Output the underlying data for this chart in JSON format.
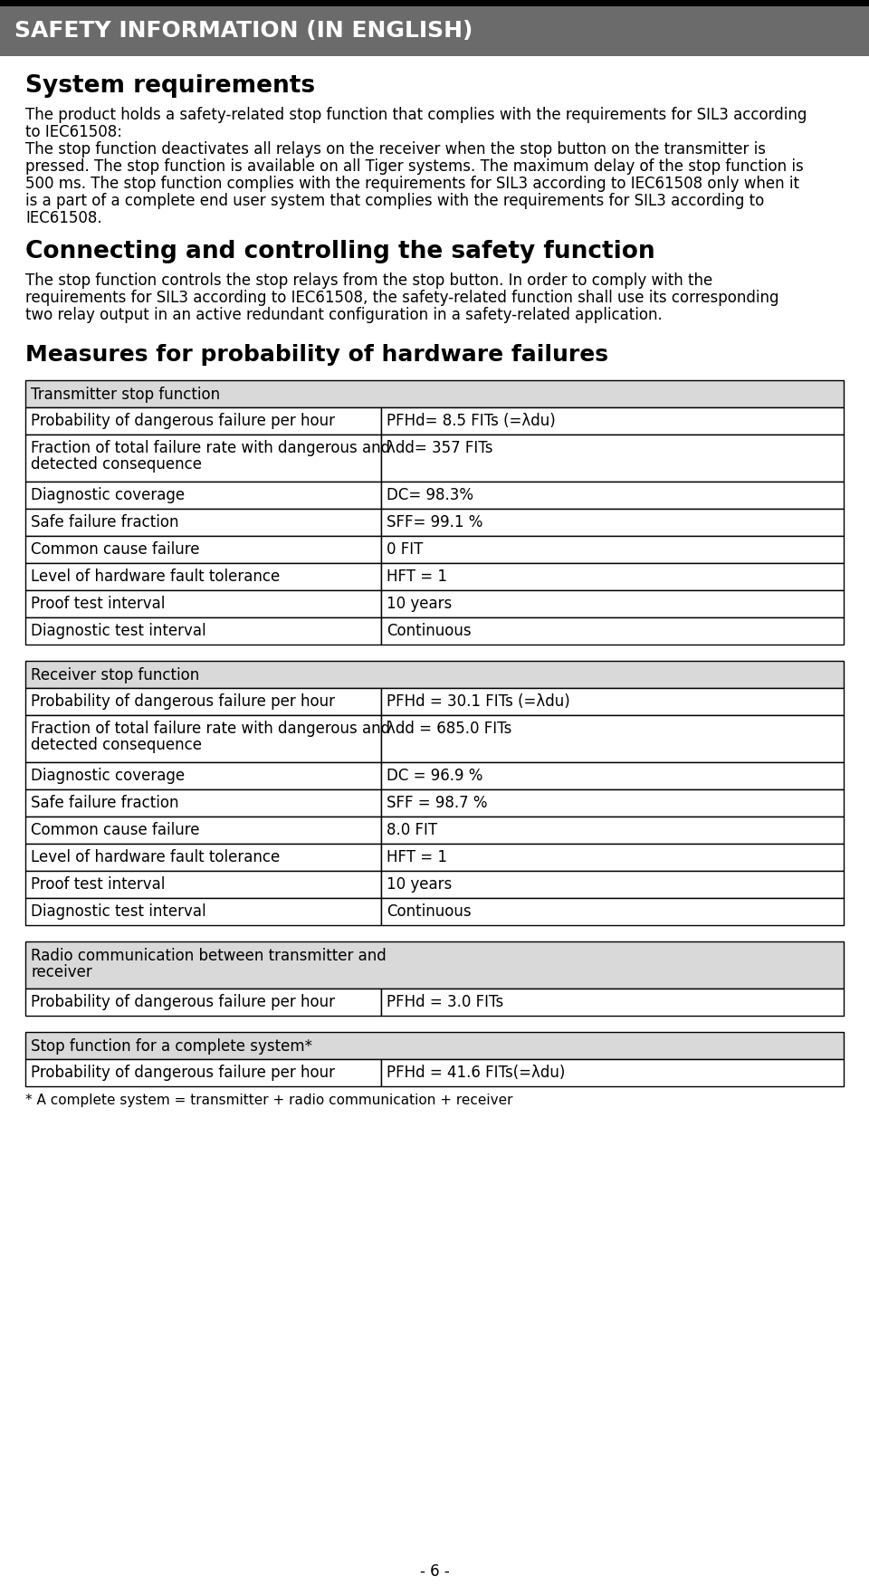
{
  "header_text": "SAFETY INFORMATION (IN ENGLISH)",
  "header_bg": "#6b6b6b",
  "header_fg": "#ffffff",
  "section1_title": "System requirements",
  "section1_body": "The product holds a safety-related stop function that complies with the requirements for SIL3 according\nto IEC61508:\nThe stop function deactivates all relays on the receiver when the stop button on the transmitter is\npressed. The stop function is available on all Tiger systems. The maximum delay of the stop function is\n500 ms. The stop function complies with the requirements for SIL3 according to IEC61508 only when it\nis a part of a complete end user system that complies with the requirements for SIL3 according to\nIEC61508.",
  "section2_title": "Connecting and controlling the safety function",
  "section2_body": "The stop function controls the stop relays from the stop button. In order to comply with the\nrequirements for SIL3 according to IEC61508, the safety-related function shall use its corresponding\ntwo relay output in an active redundant configuration in a safety-related application.",
  "section3_title": "Measures for probability of hardware failures",
  "table1_header": "Transmitter stop function",
  "table1_rows": [
    [
      "Probability of dangerous failure per hour",
      "PFHd= 8.5 FITs (=λdu)"
    ],
    [
      "Fraction of total failure rate with dangerous and\ndetected consequence",
      "λdd= 357 FITs"
    ],
    [
      "Diagnostic coverage",
      "DC= 98.3%"
    ],
    [
      "Safe failure fraction",
      "SFF= 99.1 %"
    ],
    [
      "Common cause failure",
      "0 FIT"
    ],
    [
      "Level of hardware fault tolerance",
      "HFT = 1"
    ],
    [
      "Proof test interval",
      "10 years"
    ],
    [
      "Diagnostic test interval",
      "Continuous"
    ]
  ],
  "table2_header": "Receiver stop function",
  "table2_rows": [
    [
      "Probability of dangerous failure per hour",
      "PFHd = 30.1 FITs (=λdu)"
    ],
    [
      "Fraction of total failure rate with dangerous and\ndetected consequence",
      "λdd = 685.0 FITs"
    ],
    [
      "Diagnostic coverage",
      "DC = 96.9 %"
    ],
    [
      "Safe failure fraction",
      "SFF = 98.7 %"
    ],
    [
      "Common cause failure",
      "8.0 FIT"
    ],
    [
      "Level of hardware fault tolerance",
      "HFT = 1"
    ],
    [
      "Proof test interval",
      "10 years"
    ],
    [
      "Diagnostic test interval",
      "Continuous"
    ]
  ],
  "table3_header": "Radio communication between transmitter and\nreceiver",
  "table3_rows": [
    [
      "Probability of dangerous failure per hour",
      "PFHd = 3.0 FITs"
    ]
  ],
  "table4_header": "Stop function for a complete system*",
  "table4_rows": [
    [
      "Probability of dangerous failure per hour",
      "PFHd = 41.6 FITs(=λdu)"
    ]
  ],
  "footnote": "* A complete system = transmitter + radio communication + receiver",
  "page_number": "- 6 -",
  "bg_color": "#ffffff",
  "text_color": "#000000",
  "table_header_bg": "#d9d9d9",
  "table_border_color": "#000000"
}
